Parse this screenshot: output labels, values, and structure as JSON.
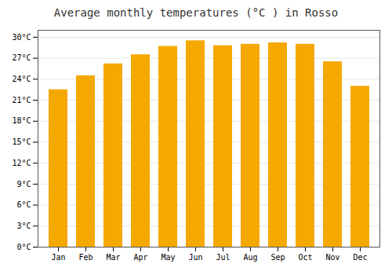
{
  "chart_data": {
    "type": "bar",
    "title": "Average monthly temperatures (°C ) in Rosso",
    "categories": [
      "Jan",
      "Feb",
      "Mar",
      "Apr",
      "May",
      "Jun",
      "Jul",
      "Aug",
      "Sep",
      "Oct",
      "Nov",
      "Dec"
    ],
    "values": [
      22.5,
      24.5,
      26.2,
      27.5,
      28.7,
      29.5,
      28.8,
      29.0,
      29.2,
      29.0,
      26.5,
      23.0
    ],
    "color": "#F5A800",
    "ylim": [
      0,
      31
    ],
    "yticks": [
      {
        "value": 0,
        "label": "0°C"
      },
      {
        "value": 3,
        "label": "3°C"
      },
      {
        "value": 6,
        "label": "6°C"
      },
      {
        "value": 9,
        "label": "9°C"
      },
      {
        "value": 12,
        "label": "12°C"
      },
      {
        "value": 15,
        "label": "15°C"
      },
      {
        "value": 18,
        "label": "18°C"
      },
      {
        "value": 21,
        "label": "21°C"
      },
      {
        "value": 24,
        "label": "24°C"
      },
      {
        "value": 27,
        "label": "27°C"
      },
      {
        "value": 30,
        "label": "30°C"
      }
    ],
    "grid": true
  }
}
